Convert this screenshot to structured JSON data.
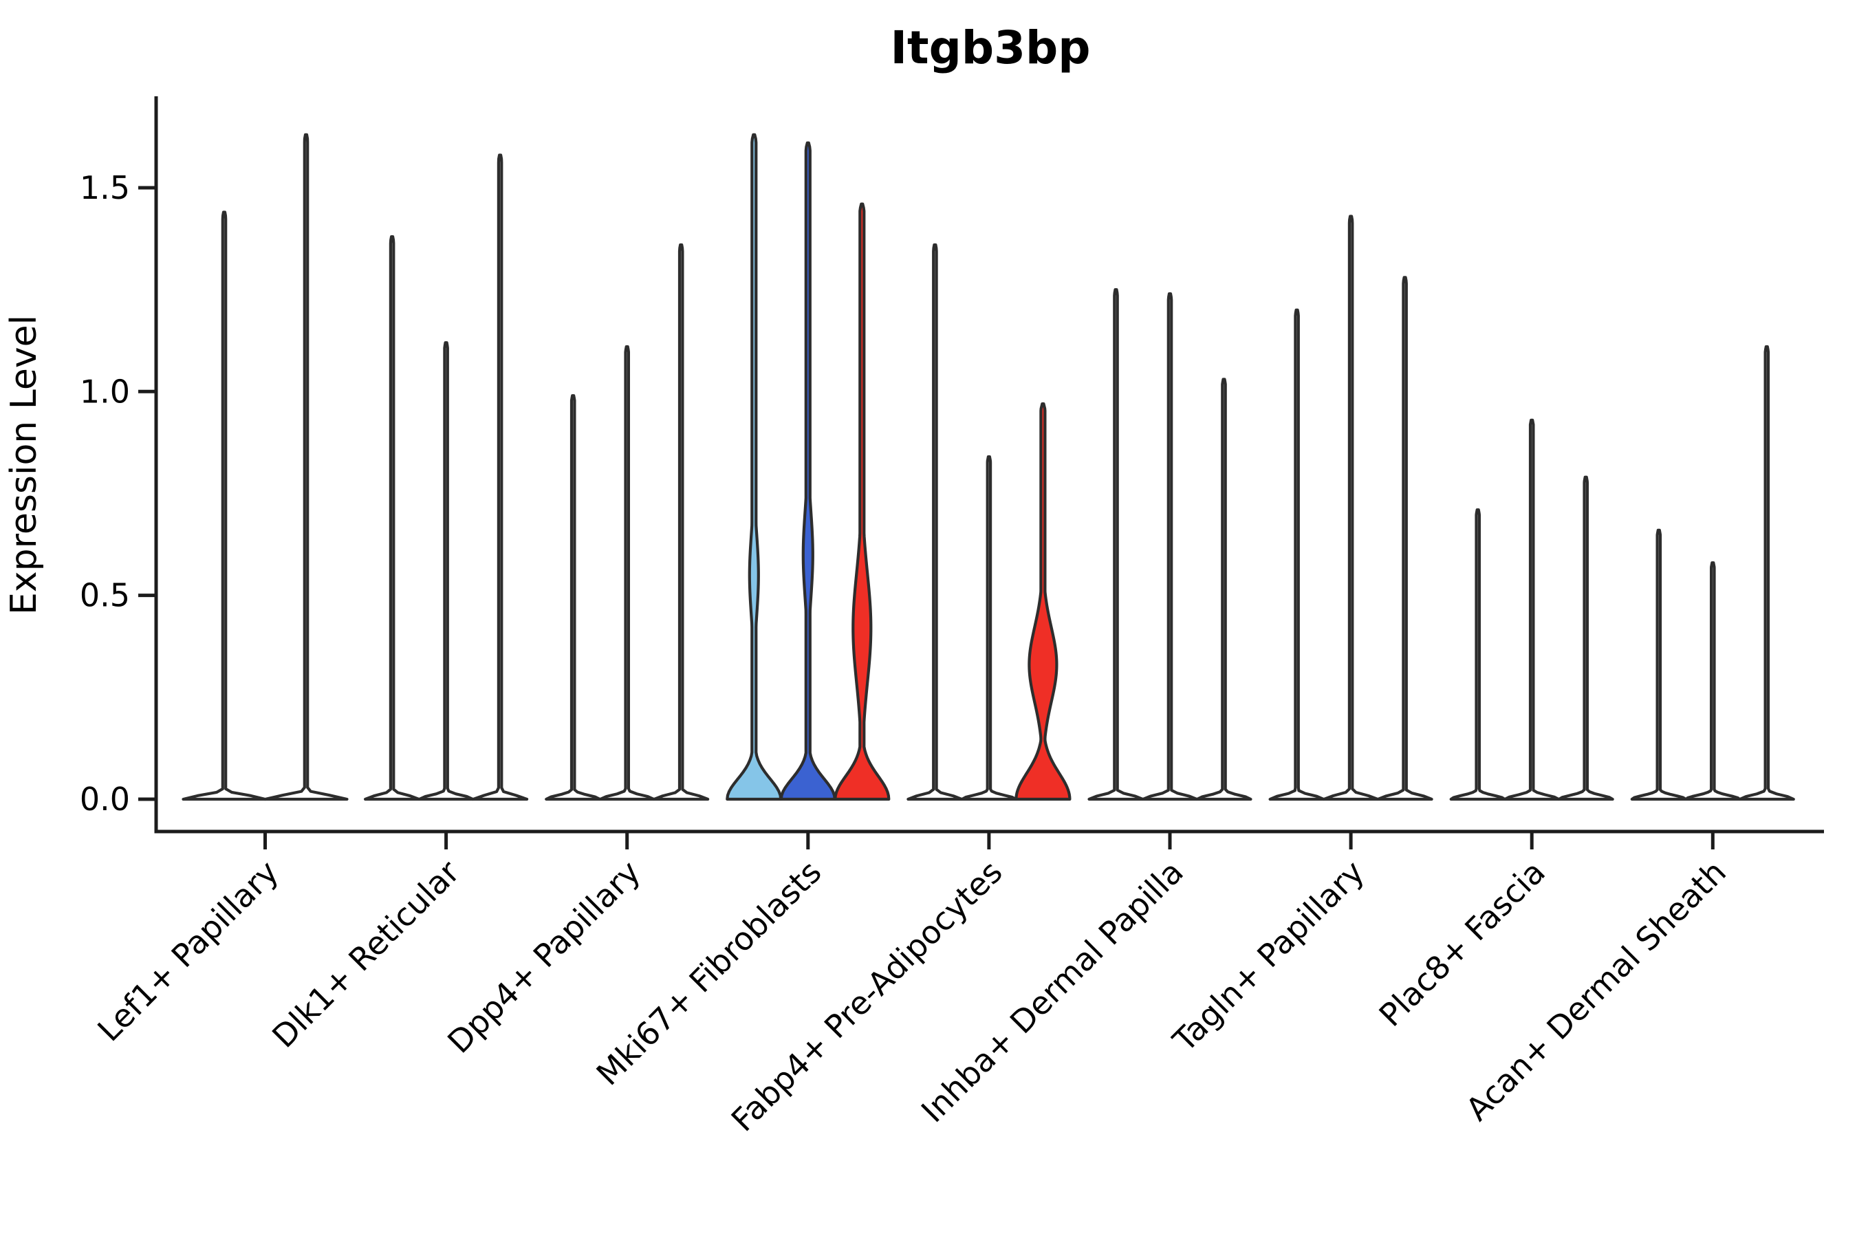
{
  "title": "Itgb3bp",
  "chart_data": {
    "type": "violin",
    "title": "Itgb3bp",
    "xlabel": "",
    "ylabel": "Expression Level",
    "ylim": [
      -0.08,
      1.72
    ],
    "grid": false,
    "legend": "none",
    "yticks": [
      0.0,
      0.5,
      1.0,
      1.5
    ],
    "ytick_labels": [
      "0.0",
      "0.5",
      "1.0",
      "1.5"
    ],
    "categories": [
      "Lef1+ Papillary",
      "Dlk1+ Reticular",
      "Dpp4+ Papillary",
      "Mki67+ Fibroblasts",
      "Fabp4+ Pre-Adipocytes",
      "Inhba+ Dermal Papilla",
      "Tagln+ Papillary",
      "Plac8+ Fascia",
      "Acan+ Dermal Sheath"
    ],
    "colors": {
      "outline": "#2d2d2d",
      "axis": "#1c1c1c",
      "highlight_lightblue": "#85C5E8",
      "highlight_blue": "#3B62D1",
      "highlight_red": "#EF2F26",
      "plain_fill": "#ffffff"
    },
    "groups": [
      {
        "category": "Lef1+ Papillary",
        "violins": [
          {
            "max": 1.44,
            "fill": "#ffffff"
          },
          {
            "max": 1.63,
            "fill": "#ffffff"
          }
        ]
      },
      {
        "category": "Dlk1+ Reticular",
        "violins": [
          {
            "max": 1.38,
            "fill": "#ffffff"
          },
          {
            "max": 1.12,
            "fill": "#ffffff"
          },
          {
            "max": 1.58,
            "fill": "#ffffff"
          }
        ]
      },
      {
        "category": "Dpp4+ Papillary",
        "violins": [
          {
            "max": 0.99,
            "fill": "#ffffff"
          },
          {
            "max": 1.11,
            "fill": "#ffffff"
          },
          {
            "max": 1.36,
            "fill": "#ffffff"
          }
        ]
      },
      {
        "category": "Mki67+ Fibroblasts",
        "violins": [
          {
            "max": 1.63,
            "fill": "#85C5E8",
            "base_decay": 0.07,
            "bulge": {
              "center": 0.55,
              "sigma": 0.14,
              "halfwidth": 6.5
            }
          },
          {
            "max": 1.61,
            "fill": "#3B62D1",
            "base_decay": 0.07,
            "bulge": {
              "center": 0.6,
              "sigma": 0.15,
              "halfwidth": 7
            }
          },
          {
            "max": 1.46,
            "fill": "#EF2F26",
            "base_decay": 0.08,
            "bulge": {
              "center": 0.42,
              "sigma": 0.19,
              "halfwidth": 13
            }
          }
        ]
      },
      {
        "category": "Fabp4+ Pre-Adipocytes",
        "violins": [
          {
            "max": 1.36,
            "fill": "#ffffff"
          },
          {
            "max": 0.84,
            "fill": "#ffffff"
          },
          {
            "max": 0.97,
            "fill": "#EF2F26",
            "base_decay": 0.09,
            "bulge": {
              "center": 0.33,
              "sigma": 0.13,
              "halfwidth": 20
            }
          }
        ]
      },
      {
        "category": "Inhba+ Dermal Papilla",
        "violins": [
          {
            "max": 1.25,
            "fill": "#ffffff"
          },
          {
            "max": 1.24,
            "fill": "#ffffff"
          },
          {
            "max": 1.03,
            "fill": "#ffffff"
          }
        ]
      },
      {
        "category": "Tagln+ Papillary",
        "violins": [
          {
            "max": 1.2,
            "fill": "#ffffff"
          },
          {
            "max": 1.43,
            "fill": "#ffffff"
          },
          {
            "max": 1.28,
            "fill": "#ffffff"
          }
        ]
      },
      {
        "category": "Plac8+ Fascia",
        "violins": [
          {
            "max": 0.71,
            "fill": "#ffffff"
          },
          {
            "max": 0.93,
            "fill": "#ffffff"
          },
          {
            "max": 0.79,
            "fill": "#ffffff"
          }
        ]
      },
      {
        "category": "Acan+ Dermal Sheath",
        "violins": [
          {
            "max": 0.66,
            "fill": "#ffffff"
          },
          {
            "max": 0.58,
            "fill": "#ffffff"
          },
          {
            "max": 1.11,
            "fill": "#ffffff"
          }
        ]
      }
    ]
  }
}
